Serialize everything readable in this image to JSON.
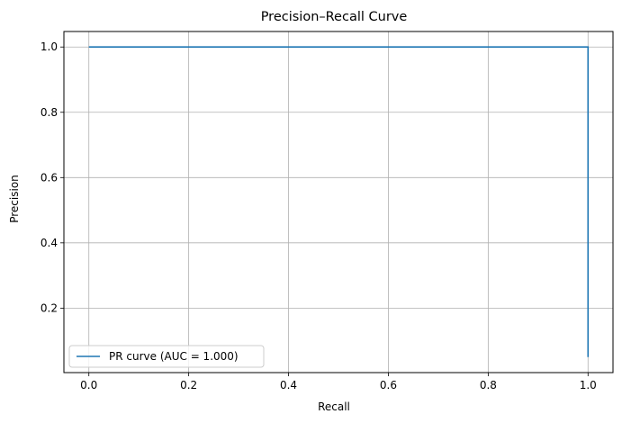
{
  "chart_data": {
    "type": "line",
    "title": "Precision–Recall Curve",
    "xlabel": "Recall",
    "ylabel": "Precision",
    "xlim": [
      -0.05,
      1.05
    ],
    "ylim": [
      0.0025,
      1.0475
    ],
    "x_ticks": [
      0.0,
      0.2,
      0.4,
      0.6,
      0.8,
      1.0
    ],
    "x_tick_labels": [
      "0.0",
      "0.2",
      "0.4",
      "0.6",
      "0.8",
      "1.0"
    ],
    "y_ticks": [
      0.2,
      0.4,
      0.6,
      0.8,
      1.0
    ],
    "y_tick_labels": [
      "0.2",
      "0.4",
      "0.6",
      "0.8",
      "1.0"
    ],
    "grid": true,
    "legend_position": "lower-left",
    "series": [
      {
        "name": "PR curve (AUC = 1.000)",
        "color": "#1f77b4",
        "x": [
          0.0,
          1.0,
          1.0
        ],
        "y": [
          1.0,
          1.0,
          0.05
        ]
      }
    ]
  }
}
